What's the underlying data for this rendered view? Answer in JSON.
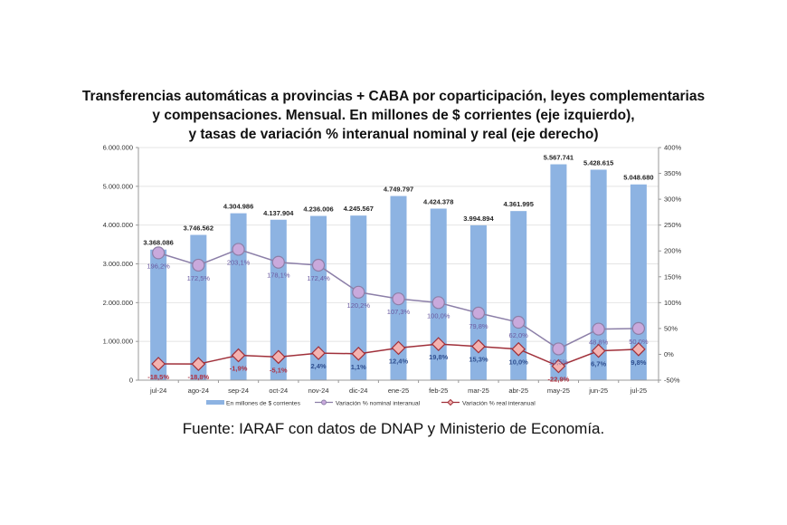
{
  "title_lines": [
    "Transferencias  automáticas  a provincias + CABA por coparticipación,  leyes complementarias",
    "y compensaciones.  Mensual. En millones de $ corrientes (eje izquierdo),",
    "y tasas de variación  % interanual nominal y real (eje derecho)"
  ],
  "source": "Fuente: IARAF con datos de DNAP y Ministerio de Economía.",
  "colors": {
    "bar": "#8db3e2",
    "nominal_line": "#8c7fa8",
    "nominal_marker": "#c9a9dc",
    "real_line": "#a0303a",
    "real_marker": "#f4b2b0"
  },
  "chart_data": {
    "type": "bar",
    "title": "Transferencias automáticas a provincias + CABA por coparticipación, leyes complementarias y compensaciones. Mensual. En millones de $ corrientes (eje izquierdo), y tasas de variación % interanual nominal y real (eje derecho)",
    "categories": [
      "jul-24",
      "ago-24",
      "sep-24",
      "oct-24",
      "nov-24",
      "dic-24",
      "ene-25",
      "feb-25",
      "mar-25",
      "abr-25",
      "may-25",
      "jun-25",
      "jul-25"
    ],
    "series": [
      {
        "name": "En millones de $ corrientes",
        "type": "bar",
        "axis": "left",
        "values": [
          3368086,
          3746562,
          4304986,
          4137904,
          4236006,
          4245567,
          4749797,
          4424378,
          3994894,
          4361995,
          5567741,
          5428615,
          5048680
        ],
        "labels": [
          "3.368.086",
          "3.746.562",
          "4.304.986",
          "4.137.904",
          "4.236.006",
          "4.245.567",
          "4.749.797",
          "4.424.378",
          "3.994.894",
          "4.361.995",
          "5.567.741",
          "5.428.615",
          "5.048.680"
        ]
      },
      {
        "name": "Variación % nominal interanual",
        "type": "line",
        "axis": "right",
        "values": [
          196.2,
          172.5,
          203.1,
          178.1,
          172.4,
          120.2,
          107.3,
          100.0,
          79.8,
          62.0,
          10.5,
          48.8,
          50.0
        ],
        "labels": [
          "196,2%",
          "172,5%",
          "203,1%",
          "178,1%",
          "172,4%",
          "120,2%",
          "107,3%",
          "100,0%",
          "79,8%",
          "62,0%",
          "10,5%",
          "48,8%",
          "50,0%"
        ]
      },
      {
        "name": "Variación % real interanual",
        "type": "line",
        "axis": "right",
        "values": [
          -18.5,
          -18.8,
          -1.9,
          -5.1,
          2.4,
          1.1,
          12.4,
          19.8,
          15.3,
          10.0,
          -22.9,
          6.7,
          9.8
        ],
        "labels": [
          "-18,5%",
          "-18,8%",
          "-1,9%",
          "-5,1%",
          "2,4%",
          "1,1%",
          "12,4%",
          "19,8%",
          "15,3%",
          "10,0%",
          "-22,9%",
          "6,7%",
          "9,8%"
        ]
      }
    ],
    "y_left": {
      "ylim": [
        0,
        6000000
      ],
      "ticks": [
        "0",
        "1.000.000",
        "2.000.000",
        "3.000.000",
        "4.000.000",
        "5.000.000",
        "6.000.000"
      ]
    },
    "y_right": {
      "ylim": [
        -50,
        400
      ],
      "ticks": [
        "-50%",
        "0%",
        "50%",
        "100%",
        "150%",
        "200%",
        "250%",
        "300%",
        "350%",
        "400%"
      ]
    },
    "grid": true,
    "legend": "bottom",
    "legend_labels": [
      "En millones de $ corrientes",
      "Variación % nominal interanual",
      "Variación % real interanual"
    ]
  }
}
